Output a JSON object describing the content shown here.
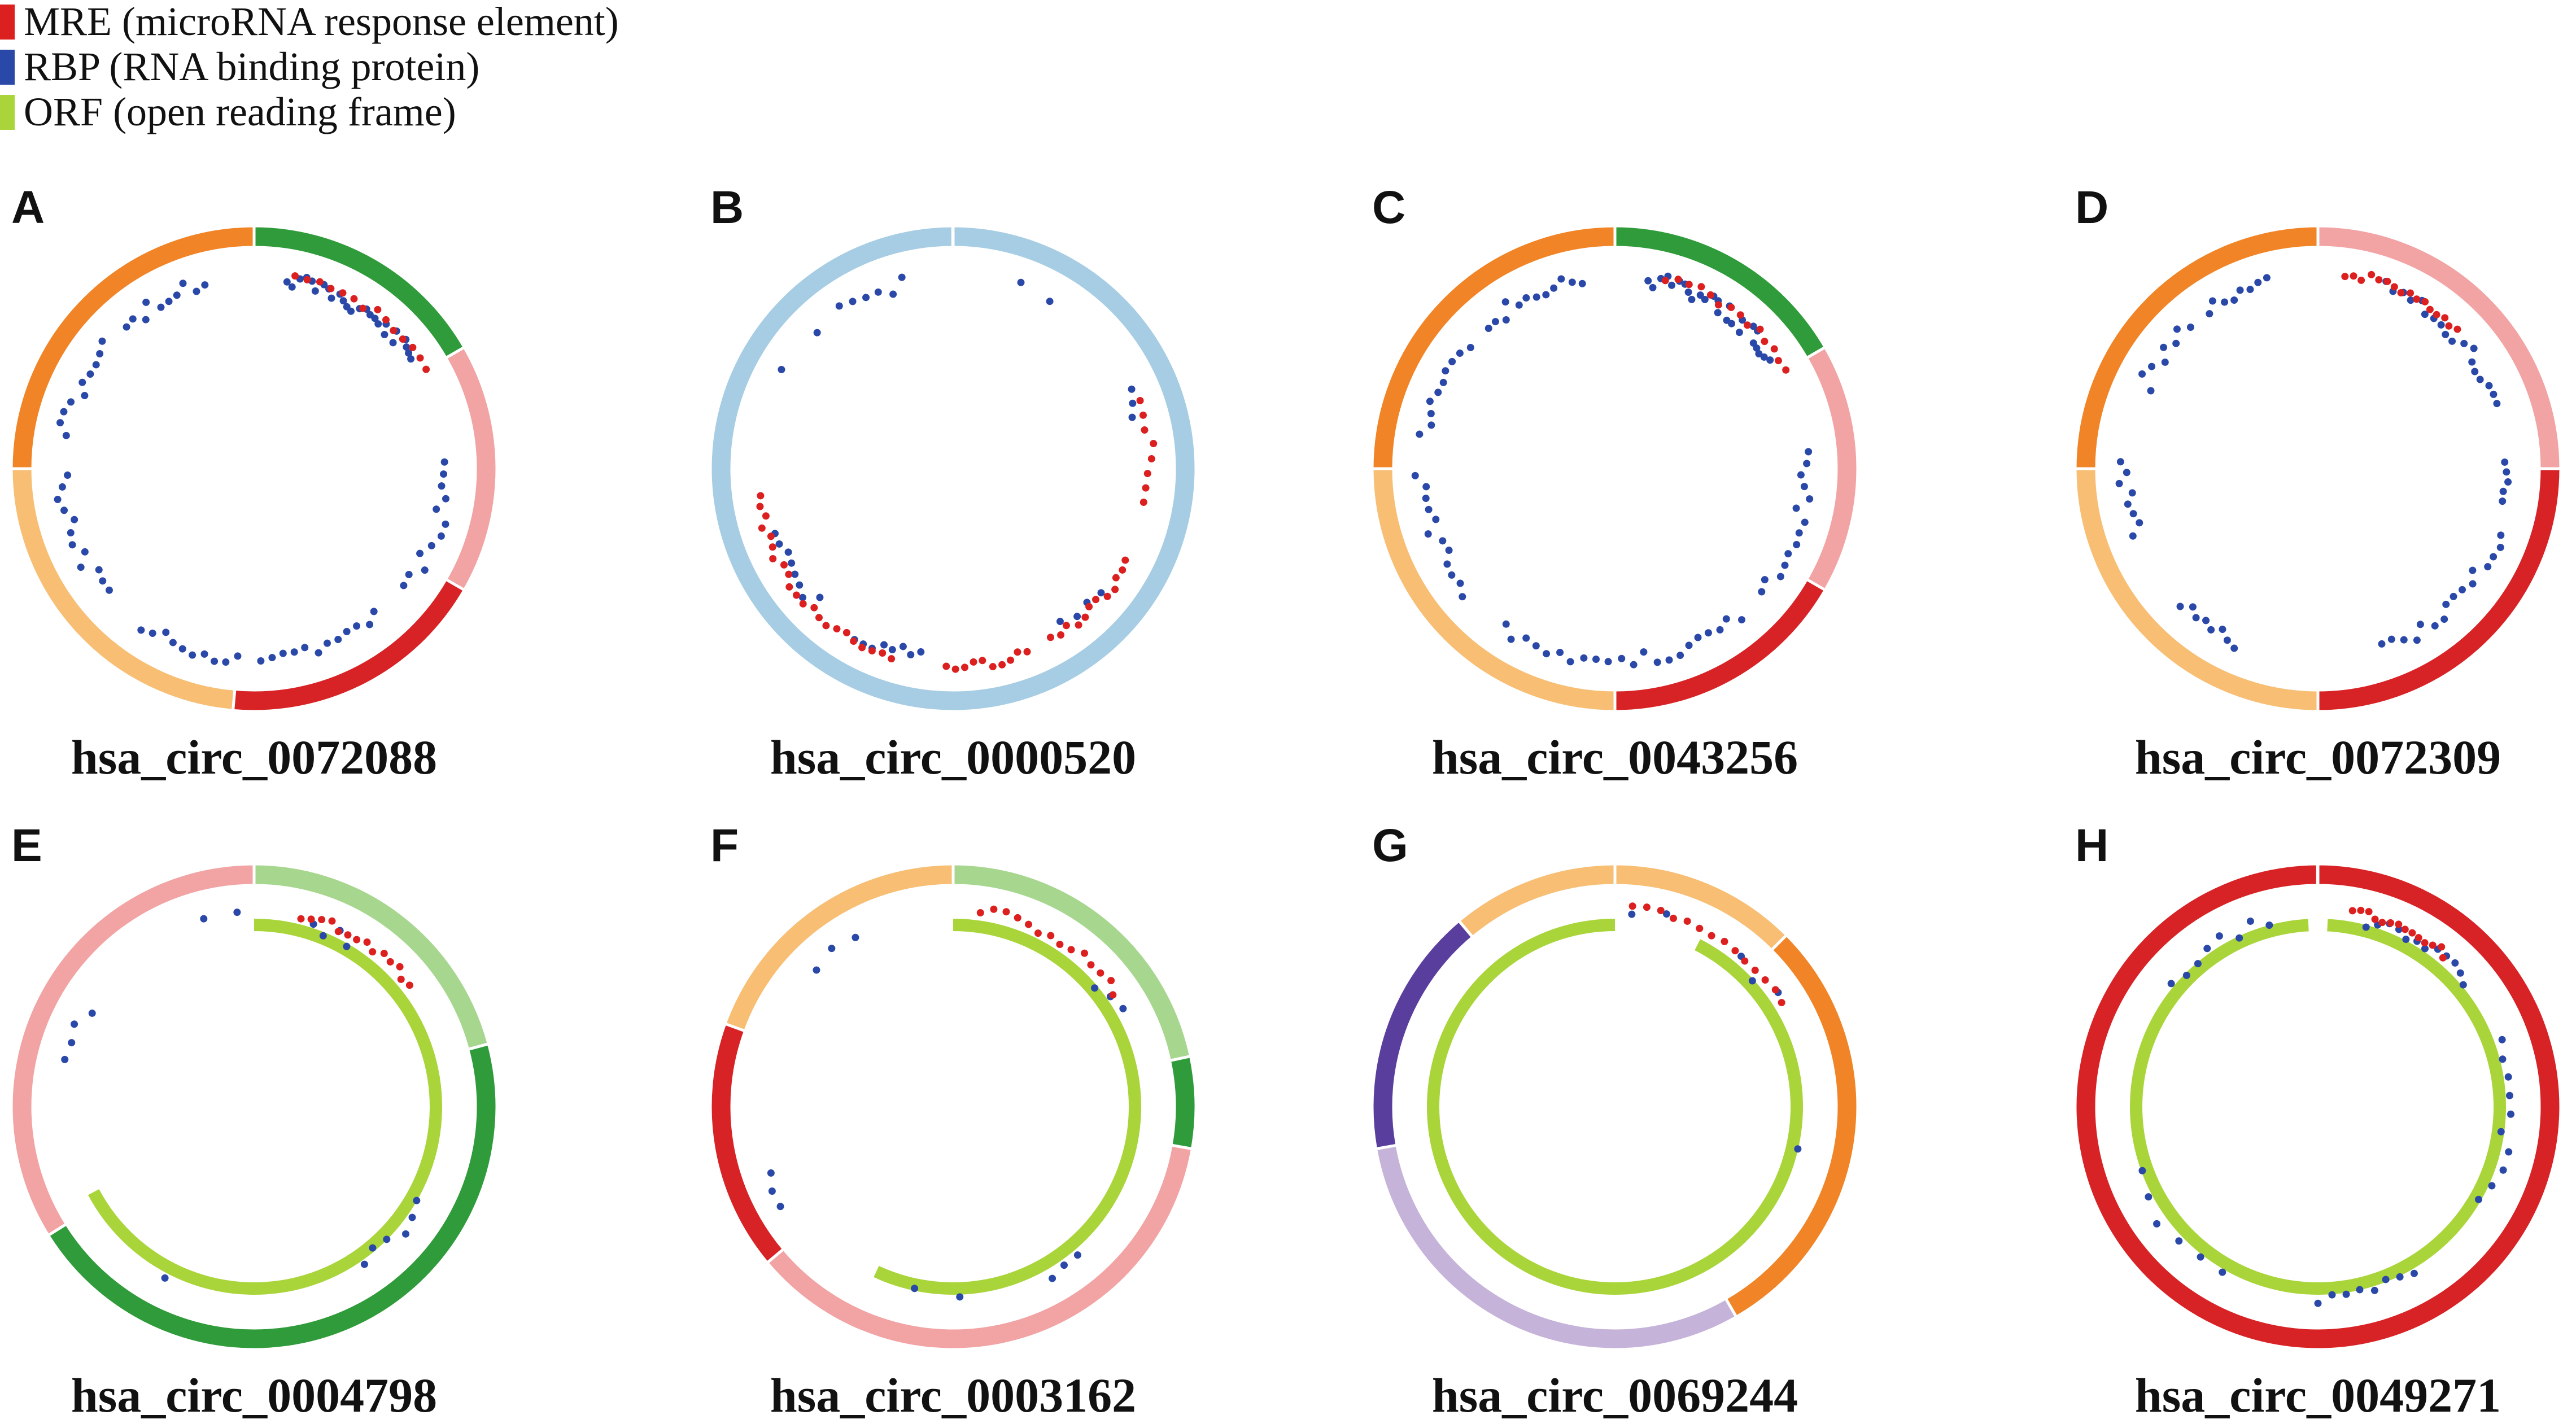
{
  "colors": {
    "mre": "#dc2020",
    "rbp": "#2a48a8",
    "orf": "#a9d53a"
  },
  "legend": [
    {
      "key": "mre",
      "label": "MRE (microRNA response element)"
    },
    {
      "key": "rbp",
      "label": "RBP (RNA binding protein)"
    },
    {
      "key": "orf",
      "label": "ORF (open reading frame)"
    }
  ],
  "panels": [
    {
      "letter": "A",
      "label": "hsa_circ_0072088",
      "segments": [
        {
          "start": 0,
          "end": 60,
          "color": "#2f9b3a"
        },
        {
          "start": 60,
          "end": 120,
          "color": "#f2a3a4"
        },
        {
          "start": 120,
          "end": 185,
          "color": "#d82326"
        },
        {
          "start": 185,
          "end": 270,
          "color": "#f7be74"
        },
        {
          "start": 270,
          "end": 360,
          "color": "#f08426"
        }
      ],
      "mre": [
        [
          12,
          60,
          14
        ]
      ],
      "rbp": [
        [
          10,
          55,
          26
        ],
        [
          88,
          128,
          12
        ],
        [
          140,
          178,
          12
        ],
        [
          185,
          215,
          10
        ],
        [
          230,
          268,
          12
        ],
        [
          280,
          310,
          10
        ],
        [
          318,
          345,
          10
        ]
      ],
      "orf": null
    },
    {
      "letter": "B",
      "label": "hsa_circ_0000520",
      "segments": [
        {
          "start": 0,
          "end": 360,
          "color": "#a6cde3"
        }
      ],
      "mre": [
        [
          70,
          100,
          8
        ],
        [
          118,
          150,
          12
        ],
        [
          158,
          182,
          10
        ],
        [
          198,
          225,
          10
        ],
        [
          228,
          262,
          12
        ]
      ],
      "rbp": [
        [
          20,
          30,
          2
        ],
        [
          66,
          74,
          3
        ],
        [
          130,
          145,
          4
        ],
        [
          190,
          210,
          8
        ],
        [
          226,
          250,
          8
        ],
        [
          300,
          315,
          2
        ],
        [
          325,
          345,
          6
        ]
      ],
      "orf": null
    },
    {
      "letter": "C",
      "label": "hsa_circ_0043256",
      "segments": [
        {
          "start": 0,
          "end": 60,
          "color": "#2f9b3a"
        },
        {
          "start": 60,
          "end": 120,
          "color": "#f2a3a4"
        },
        {
          "start": 120,
          "end": 180,
          "color": "#d82326"
        },
        {
          "start": 180,
          "end": 270,
          "color": "#f7be74"
        },
        {
          "start": 270,
          "end": 360,
          "color": "#f08426"
        }
      ],
      "mre": [
        [
          15,
          60,
          14
        ]
      ],
      "rbp": [
        [
          10,
          55,
          26
        ],
        [
          85,
          130,
          14
        ],
        [
          140,
          178,
          12
        ],
        [
          182,
          215,
          10
        ],
        [
          230,
          268,
          12
        ],
        [
          280,
          310,
          10
        ],
        [
          318,
          350,
          12
        ]
      ],
      "orf": null
    },
    {
      "letter": "D",
      "label": "hsa_circ_0072309",
      "segments": [
        {
          "start": 0,
          "end": 90,
          "color": "#f2a3a4"
        },
        {
          "start": 90,
          "end": 180,
          "color": "#d82326"
        },
        {
          "start": 180,
          "end": 270,
          "color": "#f7be74"
        },
        {
          "start": 270,
          "end": 360,
          "color": "#f08426"
        }
      ],
      "mre": [
        [
          8,
          45,
          16
        ]
      ],
      "rbp": [
        [
          20,
          70,
          18
        ],
        [
          88,
          100,
          5
        ],
        [
          110,
          160,
          16
        ],
        [
          205,
          225,
          8
        ],
        [
          250,
          272,
          8
        ],
        [
          295,
          318,
          8
        ],
        [
          325,
          345,
          8
        ]
      ],
      "orf": null
    },
    {
      "letter": "E",
      "label": "hsa_circ_0004798",
      "segments": [
        {
          "start": 0,
          "end": 75,
          "color": "#a7d68f"
        },
        {
          "start": 75,
          "end": 238,
          "color": "#2f9b3a"
        },
        {
          "start": 238,
          "end": 360,
          "color": "#f2a3a4"
        }
      ],
      "mre": [
        [
          14,
          52,
          14
        ]
      ],
      "rbp": [
        [
          18,
          30,
          4
        ],
        [
          120,
          145,
          6
        ],
        [
          205,
          210,
          1
        ],
        [
          284,
          300,
          4
        ],
        [
          345,
          355,
          2
        ]
      ],
      "orf": [
        [
          0,
          242
        ]
      ]
    },
    {
      "letter": "F",
      "label": "hsa_circ_0003162",
      "segments": [
        {
          "start": 0,
          "end": 78,
          "color": "#a7d68f"
        },
        {
          "start": 78,
          "end": 100,
          "color": "#2f9b3a"
        },
        {
          "start": 100,
          "end": 230,
          "color": "#f2a3a4"
        },
        {
          "start": 230,
          "end": 290,
          "color": "#d82326"
        },
        {
          "start": 290,
          "end": 360,
          "color": "#f7be74"
        }
      ],
      "mre": [
        [
          8,
          55,
          14
        ]
      ],
      "rbp": [
        [
          50,
          60,
          3
        ],
        [
          140,
          150,
          3
        ],
        [
          178,
          192,
          2
        ],
        [
          240,
          250,
          3
        ],
        [
          315,
          330,
          3
        ]
      ],
      "orf": [
        [
          0,
          205
        ]
      ]
    },
    {
      "letter": "G",
      "label": "hsa_circ_0069244",
      "segments": [
        {
          "start": 0,
          "end": 45,
          "color": "#f7be74"
        },
        {
          "start": 45,
          "end": 150,
          "color": "#f08426"
        },
        {
          "start": 150,
          "end": 260,
          "color": "#c6b3d9"
        },
        {
          "start": 260,
          "end": 320,
          "color": "#5a3e9e"
        },
        {
          "start": 320,
          "end": 360,
          "color": "#f7be74"
        }
      ],
      "mre": [
        [
          5,
          58,
          14
        ]
      ],
      "rbp": [
        [
          5,
          15,
          2
        ],
        [
          40,
          55,
          3
        ],
        [
          100,
          106,
          1
        ]
      ],
      "orf": [
        [
          27,
          360
        ]
      ]
    },
    {
      "letter": "H",
      "label": "hsa_circ_0049271",
      "segments": [
        {
          "start": 0,
          "end": 360,
          "color": "#d82326"
        }
      ],
      "mre": [
        [
          10,
          40,
          14
        ]
      ],
      "rbp": [
        [
          15,
          50,
          12
        ],
        [
          70,
          120,
          10
        ],
        [
          150,
          180,
          8
        ],
        [
          210,
          250,
          6
        ],
        [
          310,
          345,
          8
        ]
      ],
      "orf": [
        [
          3,
          357
        ]
      ]
    }
  ]
}
